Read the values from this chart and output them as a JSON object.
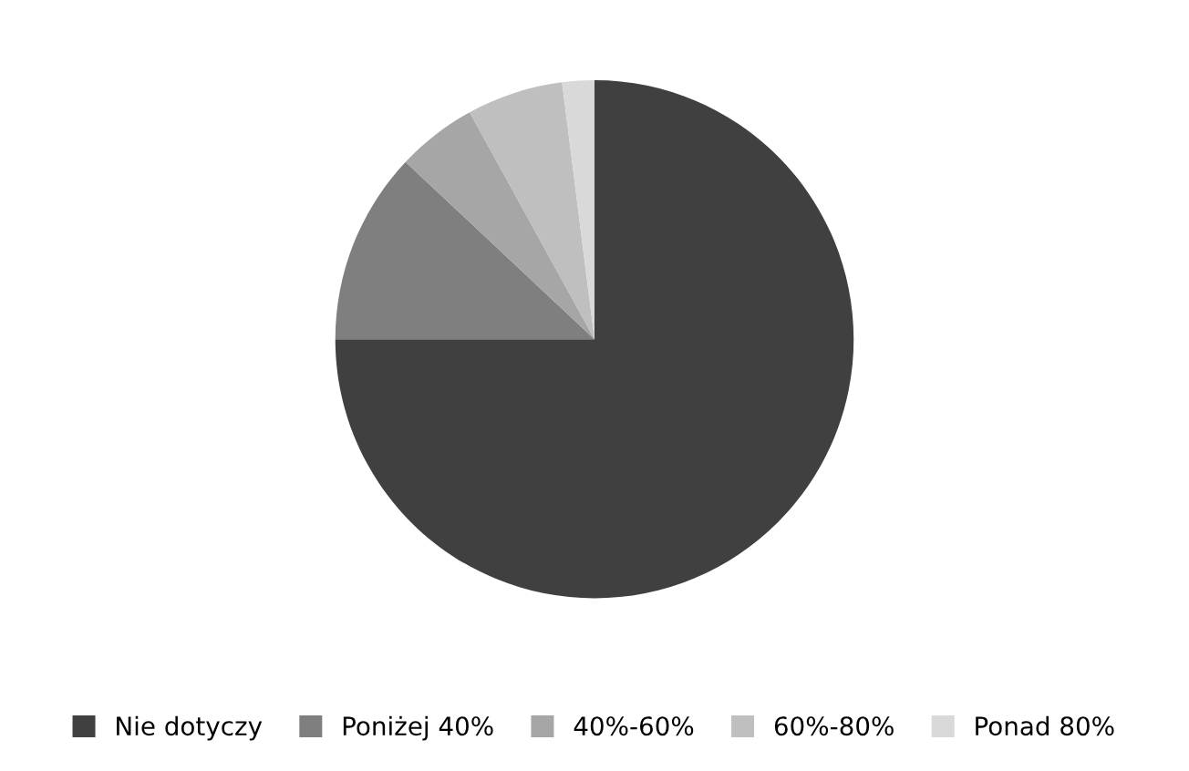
{
  "chart_data": {
    "type": "pie",
    "categories": [
      "Nie dotyczy",
      "Poniżej 40%",
      "40%-60%",
      "60%-80%",
      "Ponad 80%"
    ],
    "values": [
      75,
      12,
      5,
      6,
      2
    ],
    "colors": [
      "#404040",
      "#7f7f7f",
      "#a6a6a6",
      "#bfbfbf",
      "#d9d9d9"
    ],
    "legend": "bottom"
  }
}
